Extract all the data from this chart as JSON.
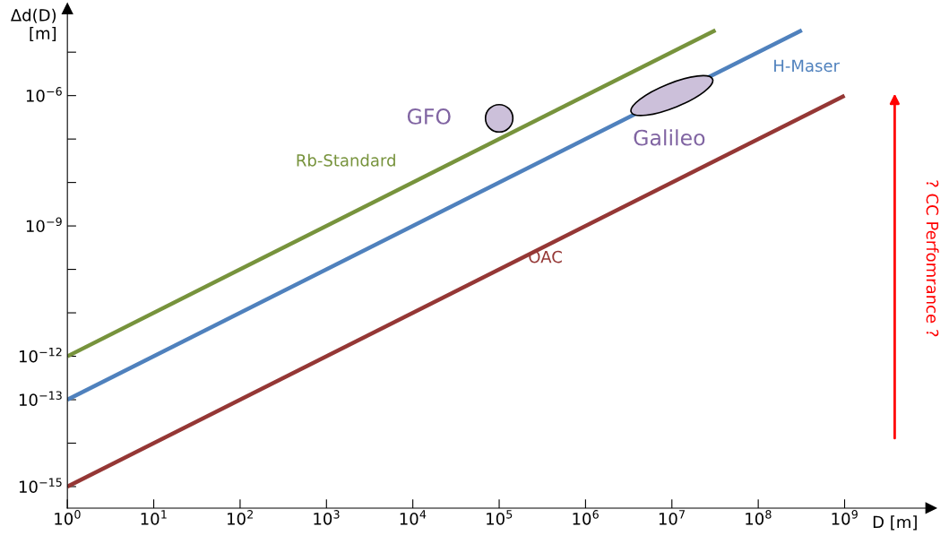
{
  "chart_data": {
    "type": "line",
    "log": "xy",
    "grid": false,
    "legend": false,
    "marker": "none",
    "line_style": "solid",
    "xlabel": "D [m]",
    "ylabel": "Δd(D)\n[m]",
    "xlim": [
      1,
      10000000000.0
    ],
    "ylim": [
      3.2e-16,
      0.0001
    ],
    "xticks": [
      {
        "value": 1,
        "label": "10$^{0}$"
      },
      {
        "value": 10,
        "label": "10$^{1}$"
      },
      {
        "value": 100,
        "label": "10$^{2}$"
      },
      {
        "value": 1000,
        "label": "10$^{3}$"
      },
      {
        "value": 10000.0,
        "label": "10$^{4}$"
      },
      {
        "value": 100000.0,
        "label": "10$^{5}$"
      },
      {
        "value": 1000000.0,
        "label": "10$^{6}$"
      },
      {
        "value": 10000000.0,
        "label": "10$^{7}$"
      },
      {
        "value": 100000000.0,
        "label": "10$^{8}$"
      },
      {
        "value": 1000000000.0,
        "label": "10$^{9}$"
      }
    ],
    "yticks": [
      {
        "value": 1e-15,
        "label": "10$^{−15}$"
      },
      {
        "value": 1e-14,
        "label": null
      },
      {
        "value": 1e-13,
        "label": "10$^{−13}$"
      },
      {
        "value": 1e-12,
        "label": "10$^{−12}$"
      },
      {
        "value": 1e-11,
        "label": null
      },
      {
        "value": 1e-10,
        "label": null
      },
      {
        "value": 1e-09,
        "label": "10$^{−9}$"
      },
      {
        "value": 1e-08,
        "label": null
      },
      {
        "value": 1e-07,
        "label": null
      },
      {
        "value": 1e-06,
        "label": "10$^{−6}$"
      },
      {
        "value": 1e-05,
        "label": null
      }
    ],
    "series": [
      {
        "name": "Rb-Standard",
        "color": "#77933c",
        "x": [
          1,
          32000000.0
        ],
        "values": [
          1e-12,
          3.2e-05
        ]
      },
      {
        "name": "H-Maser",
        "color": "#4f81bd",
        "x": [
          1,
          320000000.0
        ],
        "values": [
          1e-13,
          3.2e-05
        ]
      },
      {
        "name": "OAC",
        "color": "#953735",
        "x": [
          1,
          1000000000.0
        ],
        "values": [
          1e-15,
          1e-06
        ]
      },
      {
        "name": "GFO",
        "type": "scatter",
        "marker": "circle",
        "color": "#ccc0da",
        "x": [
          100000.0
        ],
        "values": [
          3e-07
        ]
      }
    ],
    "annotations": [
      "Galileo",
      "? CC Perfomrance ?"
    ]
  }
}
